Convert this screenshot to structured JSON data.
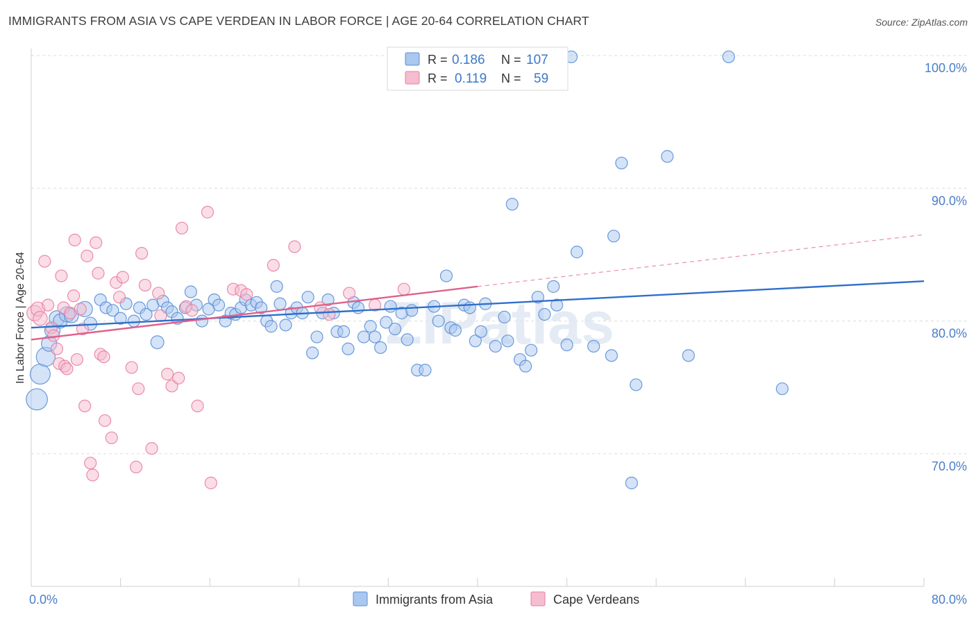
{
  "header": {
    "title": "IMMIGRANTS FROM ASIA VS CAPE VERDEAN IN LABOR FORCE | AGE 20-64 CORRELATION CHART",
    "source": "Source: ZipAtlas.com"
  },
  "watermark": "ZIPatlas",
  "colors": {
    "blue": "#a9c7ef",
    "blue_stroke": "#5b8fd6",
    "blue_line": "#2f6fca",
    "pink": "#f6bcd0",
    "pink_stroke": "#e7819f",
    "pink_line": "#e0608a",
    "axis_text": "#4a7ec9"
  },
  "legend_top": [
    {
      "r_label": "R = ",
      "r_value": "0.186",
      "n_label": "N = ",
      "n_value": "107"
    },
    {
      "r_label": "R = ",
      "r_value": "0.119",
      "n_label": "N = ",
      "n_value": "59"
    }
  ],
  "chart_data": {
    "type": "scatter",
    "ylabel": "In Labor Force | Age 20-64",
    "xlim": [
      0,
      80
    ],
    "ylim": [
      61,
      101.5
    ],
    "x_tick_labels": [
      {
        "v": 0,
        "t": "0.0%"
      },
      {
        "v": 80,
        "t": "80.0%"
      }
    ],
    "y_tick_labels": [
      {
        "v": 100,
        "t": "100.0%"
      },
      {
        "v": 90,
        "t": "90.0%"
      },
      {
        "v": 80,
        "t": "80.0%"
      },
      {
        "v": 70,
        "t": "70.0%"
      }
    ],
    "grid_y": [
      100,
      90,
      80,
      70
    ],
    "legend_placement": "bottom-center",
    "series": [
      {
        "name": "Immigrants from Asia",
        "trend": {
          "x0": 0,
          "y0": 79.5,
          "x1": 80,
          "y1": 83.0
        },
        "points": [
          [
            0.5,
            74.1,
            1.8
          ],
          [
            0.8,
            76.0,
            1.7
          ],
          [
            1.3,
            77.3,
            1.6
          ],
          [
            1.6,
            78.3,
            1.3
          ],
          [
            1.9,
            79.3,
            1.3
          ],
          [
            2.3,
            80.2,
            1.3
          ],
          [
            2.6,
            80.0,
            1.2
          ],
          [
            3.2,
            80.5,
            1.3
          ],
          [
            3.6,
            80.4,
            1.2
          ],
          [
            4.8,
            80.9,
            1.3
          ],
          [
            5.3,
            79.8,
            1.1
          ],
          [
            6.2,
            81.6,
            1.0
          ],
          [
            6.7,
            81.0,
            1.0
          ],
          [
            7.3,
            80.8,
            1.0
          ],
          [
            8.0,
            80.2,
            1.0
          ],
          [
            8.5,
            81.3,
            1.0
          ],
          [
            9.2,
            80.0,
            1.0
          ],
          [
            9.7,
            81.0,
            1.0
          ],
          [
            10.3,
            80.5,
            1.0
          ],
          [
            10.9,
            81.2,
            1.0
          ],
          [
            11.3,
            78.4,
            1.1
          ],
          [
            11.8,
            81.5,
            1.0
          ],
          [
            12.2,
            81.0,
            1.0
          ],
          [
            12.6,
            80.7,
            1.0
          ],
          [
            13.1,
            80.2,
            1.0
          ],
          [
            13.8,
            81.0,
            1.0
          ],
          [
            14.3,
            82.2,
            1.0
          ],
          [
            14.8,
            81.2,
            1.0
          ],
          [
            15.3,
            80.0,
            1.0
          ],
          [
            15.9,
            80.9,
            1.0
          ],
          [
            16.4,
            81.6,
            1.0
          ],
          [
            16.8,
            81.2,
            1.0
          ],
          [
            17.4,
            80.0,
            1.0
          ],
          [
            17.9,
            80.6,
            1.0
          ],
          [
            18.3,
            80.5,
            1.0
          ],
          [
            18.8,
            81.0,
            1.0
          ],
          [
            19.2,
            81.6,
            1.0
          ],
          [
            19.7,
            81.2,
            1.0
          ],
          [
            20.2,
            81.4,
            1.0
          ],
          [
            20.6,
            81.0,
            1.0
          ],
          [
            21.1,
            80.0,
            1.0
          ],
          [
            21.5,
            79.6,
            1.0
          ],
          [
            22.0,
            82.6,
            1.0
          ],
          [
            22.3,
            81.3,
            1.0
          ],
          [
            22.8,
            79.7,
            1.0
          ],
          [
            23.3,
            80.6,
            1.0
          ],
          [
            23.8,
            81.0,
            1.0
          ],
          [
            24.3,
            80.6,
            1.0
          ],
          [
            24.8,
            81.8,
            1.0
          ],
          [
            25.2,
            77.6,
            1.0
          ],
          [
            25.6,
            78.8,
            1.0
          ],
          [
            26.1,
            80.6,
            1.0
          ],
          [
            26.6,
            81.6,
            1.0
          ],
          [
            27.1,
            80.6,
            1.0
          ],
          [
            27.4,
            79.2,
            1.0
          ],
          [
            28.0,
            79.2,
            1.0
          ],
          [
            28.4,
            77.9,
            1.0
          ],
          [
            28.9,
            81.4,
            1.0
          ],
          [
            29.3,
            81.0,
            1.0
          ],
          [
            29.8,
            78.8,
            1.0
          ],
          [
            30.4,
            79.6,
            1.0
          ],
          [
            30.8,
            78.8,
            1.0
          ],
          [
            31.3,
            78.0,
            1.0
          ],
          [
            31.8,
            79.9,
            1.0
          ],
          [
            32.2,
            81.1,
            1.0
          ],
          [
            32.6,
            79.4,
            1.0
          ],
          [
            33.2,
            80.6,
            1.0
          ],
          [
            33.7,
            78.6,
            1.0
          ],
          [
            34.1,
            80.8,
            1.0
          ],
          [
            34.6,
            76.3,
            1.0
          ],
          [
            35.3,
            76.3,
            1.0
          ],
          [
            36.1,
            81.1,
            1.0
          ],
          [
            36.5,
            80.0,
            1.0
          ],
          [
            37.2,
            83.4,
            1.0
          ],
          [
            37.6,
            79.5,
            1.0
          ],
          [
            38.0,
            79.3,
            1.0
          ],
          [
            38.8,
            81.2,
            1.0
          ],
          [
            39.3,
            81.0,
            1.0
          ],
          [
            39.8,
            78.5,
            1.0
          ],
          [
            40.3,
            79.2,
            1.0
          ],
          [
            40.7,
            81.3,
            1.0
          ],
          [
            41.6,
            78.1,
            1.0
          ],
          [
            42.4,
            80.3,
            1.0
          ],
          [
            42.7,
            78.5,
            1.0
          ],
          [
            43.1,
            88.8,
            1.0
          ],
          [
            43.8,
            77.1,
            1.0
          ],
          [
            44.3,
            76.6,
            1.0
          ],
          [
            44.8,
            77.8,
            1.0
          ],
          [
            45.4,
            81.8,
            1.0
          ],
          [
            46.0,
            80.5,
            1.0
          ],
          [
            46.8,
            82.6,
            1.0
          ],
          [
            47.1,
            81.2,
            1.0
          ],
          [
            48.0,
            78.2,
            1.0
          ],
          [
            48.4,
            99.9,
            1.0
          ],
          [
            48.9,
            85.2,
            1.0
          ],
          [
            50.4,
            78.1,
            1.0
          ],
          [
            52.0,
            77.4,
            1.0
          ],
          [
            52.2,
            86.4,
            1.0
          ],
          [
            52.9,
            91.9,
            1.0
          ],
          [
            53.8,
            67.8,
            1.0
          ],
          [
            54.2,
            75.2,
            1.0
          ],
          [
            57.0,
            92.4,
            1.0
          ],
          [
            58.9,
            77.4,
            1.0
          ],
          [
            62.5,
            99.9,
            1.0
          ],
          [
            67.3,
            74.9,
            1.0
          ]
        ]
      },
      {
        "name": "Cape Verdeans",
        "trend": {
          "x0": 0,
          "y0": 78.6,
          "x1": 40,
          "y1": 82.6
        },
        "trend_extension": {
          "x0": 40,
          "y0": 82.6,
          "x1": 80,
          "y1": 86.5
        },
        "points": [
          [
            0.3,
            80.6,
            1.3
          ],
          [
            0.6,
            80.9,
            1.2
          ],
          [
            0.8,
            80.2,
            1.2
          ],
          [
            1.2,
            84.5,
            1.0
          ],
          [
            1.5,
            81.2,
            1.0
          ],
          [
            1.8,
            79.5,
            1.0
          ],
          [
            2.0,
            78.9,
            1.0
          ],
          [
            2.3,
            77.9,
            1.0
          ],
          [
            2.5,
            76.8,
            1.0
          ],
          [
            2.7,
            83.4,
            1.0
          ],
          [
            2.9,
            81.0,
            1.0
          ],
          [
            3.0,
            76.6,
            1.0
          ],
          [
            3.2,
            76.4,
            1.0
          ],
          [
            3.5,
            80.6,
            1.0
          ],
          [
            3.8,
            81.9,
            1.0
          ],
          [
            3.9,
            86.1,
            1.0
          ],
          [
            4.1,
            77.1,
            1.0
          ],
          [
            4.4,
            80.9,
            1.0
          ],
          [
            4.6,
            79.4,
            1.0
          ],
          [
            4.8,
            73.6,
            1.0
          ],
          [
            5.0,
            84.9,
            1.0
          ],
          [
            5.3,
            69.3,
            1.0
          ],
          [
            5.5,
            68.4,
            1.0
          ],
          [
            5.8,
            85.9,
            1.0
          ],
          [
            6.0,
            83.6,
            1.0
          ],
          [
            6.2,
            77.5,
            1.0
          ],
          [
            6.5,
            77.3,
            1.0
          ],
          [
            6.6,
            72.5,
            1.0
          ],
          [
            7.2,
            71.2,
            1.0
          ],
          [
            7.6,
            82.9,
            1.0
          ],
          [
            7.9,
            81.8,
            1.0
          ],
          [
            8.2,
            83.3,
            1.0
          ],
          [
            9.0,
            76.5,
            1.0
          ],
          [
            9.4,
            69.0,
            1.0
          ],
          [
            9.6,
            74.9,
            1.0
          ],
          [
            9.9,
            85.1,
            1.0
          ],
          [
            10.2,
            82.7,
            1.0
          ],
          [
            10.8,
            70.4,
            1.0
          ],
          [
            11.4,
            82.1,
            1.0
          ],
          [
            11.6,
            80.4,
            1.0
          ],
          [
            12.2,
            76.0,
            1.0
          ],
          [
            12.6,
            75.1,
            1.0
          ],
          [
            13.2,
            75.7,
            1.0
          ],
          [
            13.5,
            87.0,
            1.0
          ],
          [
            13.9,
            81.1,
            1.0
          ],
          [
            14.4,
            80.8,
            1.0
          ],
          [
            14.9,
            73.6,
            1.0
          ],
          [
            15.8,
            88.2,
            1.0
          ],
          [
            16.1,
            67.8,
            1.0
          ],
          [
            18.1,
            82.4,
            1.0
          ],
          [
            18.8,
            82.3,
            1.0
          ],
          [
            19.3,
            82.0,
            1.0
          ],
          [
            21.7,
            84.2,
            1.0
          ],
          [
            23.6,
            85.6,
            1.0
          ],
          [
            25.9,
            81.0,
            1.0
          ],
          [
            26.7,
            80.5,
            1.0
          ],
          [
            28.5,
            82.1,
            1.0
          ],
          [
            30.8,
            81.2,
            1.0
          ],
          [
            33.4,
            82.4,
            1.0
          ]
        ]
      }
    ]
  }
}
